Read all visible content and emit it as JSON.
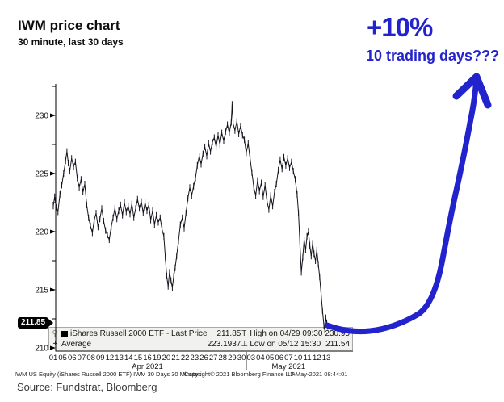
{
  "header": {
    "title": "IWM price chart",
    "subtitle": "30 minute, last 30 days"
  },
  "annotation": {
    "headline": "+10%",
    "subline": "10 trading days???",
    "color": "#2323cd"
  },
  "price_tag": "211.85",
  "legend": {
    "series_label": "iShares Russell 2000 ETF - Last Price",
    "series_value": "211.85",
    "average_marker": "+",
    "average_label": "Average",
    "average_value": "223.1937",
    "high_marker": "T",
    "high_label": "High on 04/29 09:30",
    "high_value": "230.95",
    "low_marker": "⊥",
    "low_label": "Low on 05/12 15:30",
    "low_value": "211.54"
  },
  "footer": {
    "instrument": "IWM US Equity (iShares Russell 2000 ETF) IWM 30 Days 30 Minutes",
    "copyright": "Copyright© 2021 Bloomberg Finance L.P.",
    "datetime": "13-May-2021 08:44:01"
  },
  "source": "Source: Fundstrat, Bloomberg",
  "chart_data": {
    "type": "line",
    "title": "IWM price chart",
    "subtitle": "30 minute, last 30 days",
    "series_name": "iShares Russell 2000 ETF - Last Price",
    "interval": "30 minute bars",
    "span": "last 30 trading days",
    "ylim": [
      210,
      232.5
    ],
    "yticks": [
      210,
      215,
      220,
      225,
      230
    ],
    "yticks_minor": [
      212.5,
      217.5,
      222.5,
      227.5,
      232.5
    ],
    "grid": false,
    "legend_position": "bottom-left",
    "x_tick_labels_apr": [
      "01",
      "05",
      "06",
      "07",
      "08",
      "09",
      "12",
      "13",
      "14",
      "15",
      "16",
      "19",
      "20",
      "21",
      "22",
      "23",
      "26",
      "27",
      "28",
      "29",
      "30"
    ],
    "x_tick_labels_may": [
      "03",
      "04",
      "05",
      "06",
      "07",
      "10",
      "11",
      "12",
      "13"
    ],
    "month_labels": [
      "Apr 2021",
      "May 2021"
    ],
    "last_price": 211.85,
    "average": 223.1937,
    "high": {
      "time": "04/29 09:30",
      "value": 230.95
    },
    "low": {
      "time": "05/12 15:30",
      "value": 211.54
    },
    "x_unit": "trading-day index (0 = Apr 01 2021, 29 = May 13 2021)",
    "points": [
      [
        0.0,
        222.2
      ],
      [
        0.15,
        223.0
      ],
      [
        0.3,
        222.1
      ],
      [
        0.5,
        221.7
      ],
      [
        0.7,
        223.2
      ],
      [
        0.9,
        224.0
      ],
      [
        1.1,
        225.0
      ],
      [
        1.3,
        226.1
      ],
      [
        1.45,
        226.9
      ],
      [
        1.6,
        225.9
      ],
      [
        1.75,
        225.2
      ],
      [
        1.95,
        226.3
      ],
      [
        2.15,
        225.6
      ],
      [
        2.35,
        226.0
      ],
      [
        2.55,
        224.6
      ],
      [
        2.75,
        223.8
      ],
      [
        2.95,
        224.5
      ],
      [
        3.15,
        223.4
      ],
      [
        3.35,
        224.1
      ],
      [
        3.55,
        222.3
      ],
      [
        3.75,
        221.2
      ],
      [
        3.95,
        220.5
      ],
      [
        4.15,
        219.9
      ],
      [
        4.35,
        221.0
      ],
      [
        4.55,
        221.6
      ],
      [
        4.75,
        220.4
      ],
      [
        4.95,
        221.1
      ],
      [
        5.15,
        222.0
      ],
      [
        5.35,
        220.9
      ],
      [
        5.55,
        220.1
      ],
      [
        5.75,
        219.7
      ],
      [
        5.95,
        219.3
      ],
      [
        6.15,
        220.4
      ],
      [
        6.35,
        221.2
      ],
      [
        6.55,
        222.0
      ],
      [
        6.75,
        221.1
      ],
      [
        6.95,
        221.8
      ],
      [
        7.15,
        222.3
      ],
      [
        7.35,
        221.4
      ],
      [
        7.55,
        222.5
      ],
      [
        7.75,
        221.7
      ],
      [
        7.95,
        222.2
      ],
      [
        8.15,
        221.5
      ],
      [
        8.35,
        222.4
      ],
      [
        8.55,
        221.2
      ],
      [
        8.75,
        222.0
      ],
      [
        8.95,
        222.8
      ],
      [
        9.15,
        222.0
      ],
      [
        9.35,
        222.6
      ],
      [
        9.55,
        221.6
      ],
      [
        9.75,
        222.5
      ],
      [
        9.95,
        221.8
      ],
      [
        10.15,
        222.3
      ],
      [
        10.35,
        221.0
      ],
      [
        10.55,
        221.8
      ],
      [
        10.75,
        220.6
      ],
      [
        10.95,
        221.4
      ],
      [
        11.15,
        220.8
      ],
      [
        11.35,
        221.2
      ],
      [
        11.55,
        220.2
      ],
      [
        11.75,
        219.6
      ],
      [
        11.9,
        217.8
      ],
      [
        12.05,
        216.2
      ],
      [
        12.2,
        215.3
      ],
      [
        12.35,
        216.5
      ],
      [
        12.5,
        215.8
      ],
      [
        12.65,
        215.2
      ],
      [
        12.8,
        216.2
      ],
      [
        12.95,
        216.9
      ],
      [
        13.1,
        217.9
      ],
      [
        13.3,
        219.2
      ],
      [
        13.5,
        220.6
      ],
      [
        13.7,
        221.2
      ],
      [
        13.9,
        220.3
      ],
      [
        14.1,
        221.6
      ],
      [
        14.3,
        222.9
      ],
      [
        14.5,
        223.8
      ],
      [
        14.7,
        223.1
      ],
      [
        14.9,
        223.9
      ],
      [
        15.1,
        224.6
      ],
      [
        15.3,
        225.7
      ],
      [
        15.5,
        226.5
      ],
      [
        15.7,
        225.8
      ],
      [
        15.9,
        226.7
      ],
      [
        16.1,
        227.3
      ],
      [
        16.3,
        226.5
      ],
      [
        16.5,
        227.6
      ],
      [
        16.7,
        226.9
      ],
      [
        16.9,
        227.7
      ],
      [
        17.1,
        228.1
      ],
      [
        17.3,
        227.3
      ],
      [
        17.5,
        228.3
      ],
      [
        17.7,
        227.5
      ],
      [
        17.9,
        228.5
      ],
      [
        18.1,
        227.8
      ],
      [
        18.3,
        228.6
      ],
      [
        18.5,
        229.2
      ],
      [
        18.7,
        228.5
      ],
      [
        18.9,
        229.4
      ],
      [
        19.0,
        230.95
      ],
      [
        19.1,
        229.3
      ],
      [
        19.3,
        228.7
      ],
      [
        19.5,
        229.5
      ],
      [
        19.7,
        228.4
      ],
      [
        19.9,
        229.1
      ],
      [
        20.1,
        228.3
      ],
      [
        20.3,
        227.9
      ],
      [
        20.5,
        226.8
      ],
      [
        20.7,
        227.6
      ],
      [
        20.9,
        226.3
      ],
      [
        21.1,
        225.1
      ],
      [
        21.3,
        223.8
      ],
      [
        21.5,
        223.1
      ],
      [
        21.7,
        224.4
      ],
      [
        21.9,
        223.5
      ],
      [
        22.1,
        224.2
      ],
      [
        22.3,
        223.0
      ],
      [
        22.5,
        224.0
      ],
      [
        22.7,
        222.6
      ],
      [
        22.9,
        221.9
      ],
      [
        23.1,
        223.1
      ],
      [
        23.3,
        222.2
      ],
      [
        23.5,
        223.4
      ],
      [
        23.7,
        224.1
      ],
      [
        23.9,
        225.3
      ],
      [
        24.1,
        226.2
      ],
      [
        24.3,
        225.4
      ],
      [
        24.5,
        226.4
      ],
      [
        24.7,
        225.7
      ],
      [
        24.9,
        226.3
      ],
      [
        25.1,
        225.5
      ],
      [
        25.3,
        226.0
      ],
      [
        25.5,
        225.2
      ],
      [
        25.7,
        224.5
      ],
      [
        25.9,
        223.2
      ],
      [
        26.05,
        221.6
      ],
      [
        26.2,
        218.9
      ],
      [
        26.35,
        216.5
      ],
      [
        26.5,
        217.8
      ],
      [
        26.65,
        219.3
      ],
      [
        26.8,
        218.4
      ],
      [
        26.95,
        219.6
      ],
      [
        27.1,
        220.0
      ],
      [
        27.25,
        218.8
      ],
      [
        27.4,
        217.9
      ],
      [
        27.55,
        219.0
      ],
      [
        27.7,
        218.1
      ],
      [
        27.85,
        217.5
      ],
      [
        28.0,
        218.4
      ],
      [
        28.15,
        217.2
      ],
      [
        28.3,
        216.1
      ],
      [
        28.45,
        214.6
      ],
      [
        28.6,
        213.2
      ],
      [
        28.75,
        211.9
      ],
      [
        28.85,
        211.54
      ],
      [
        28.95,
        212.6
      ],
      [
        29.05,
        212.1
      ],
      [
        29.15,
        211.85
      ]
    ]
  }
}
